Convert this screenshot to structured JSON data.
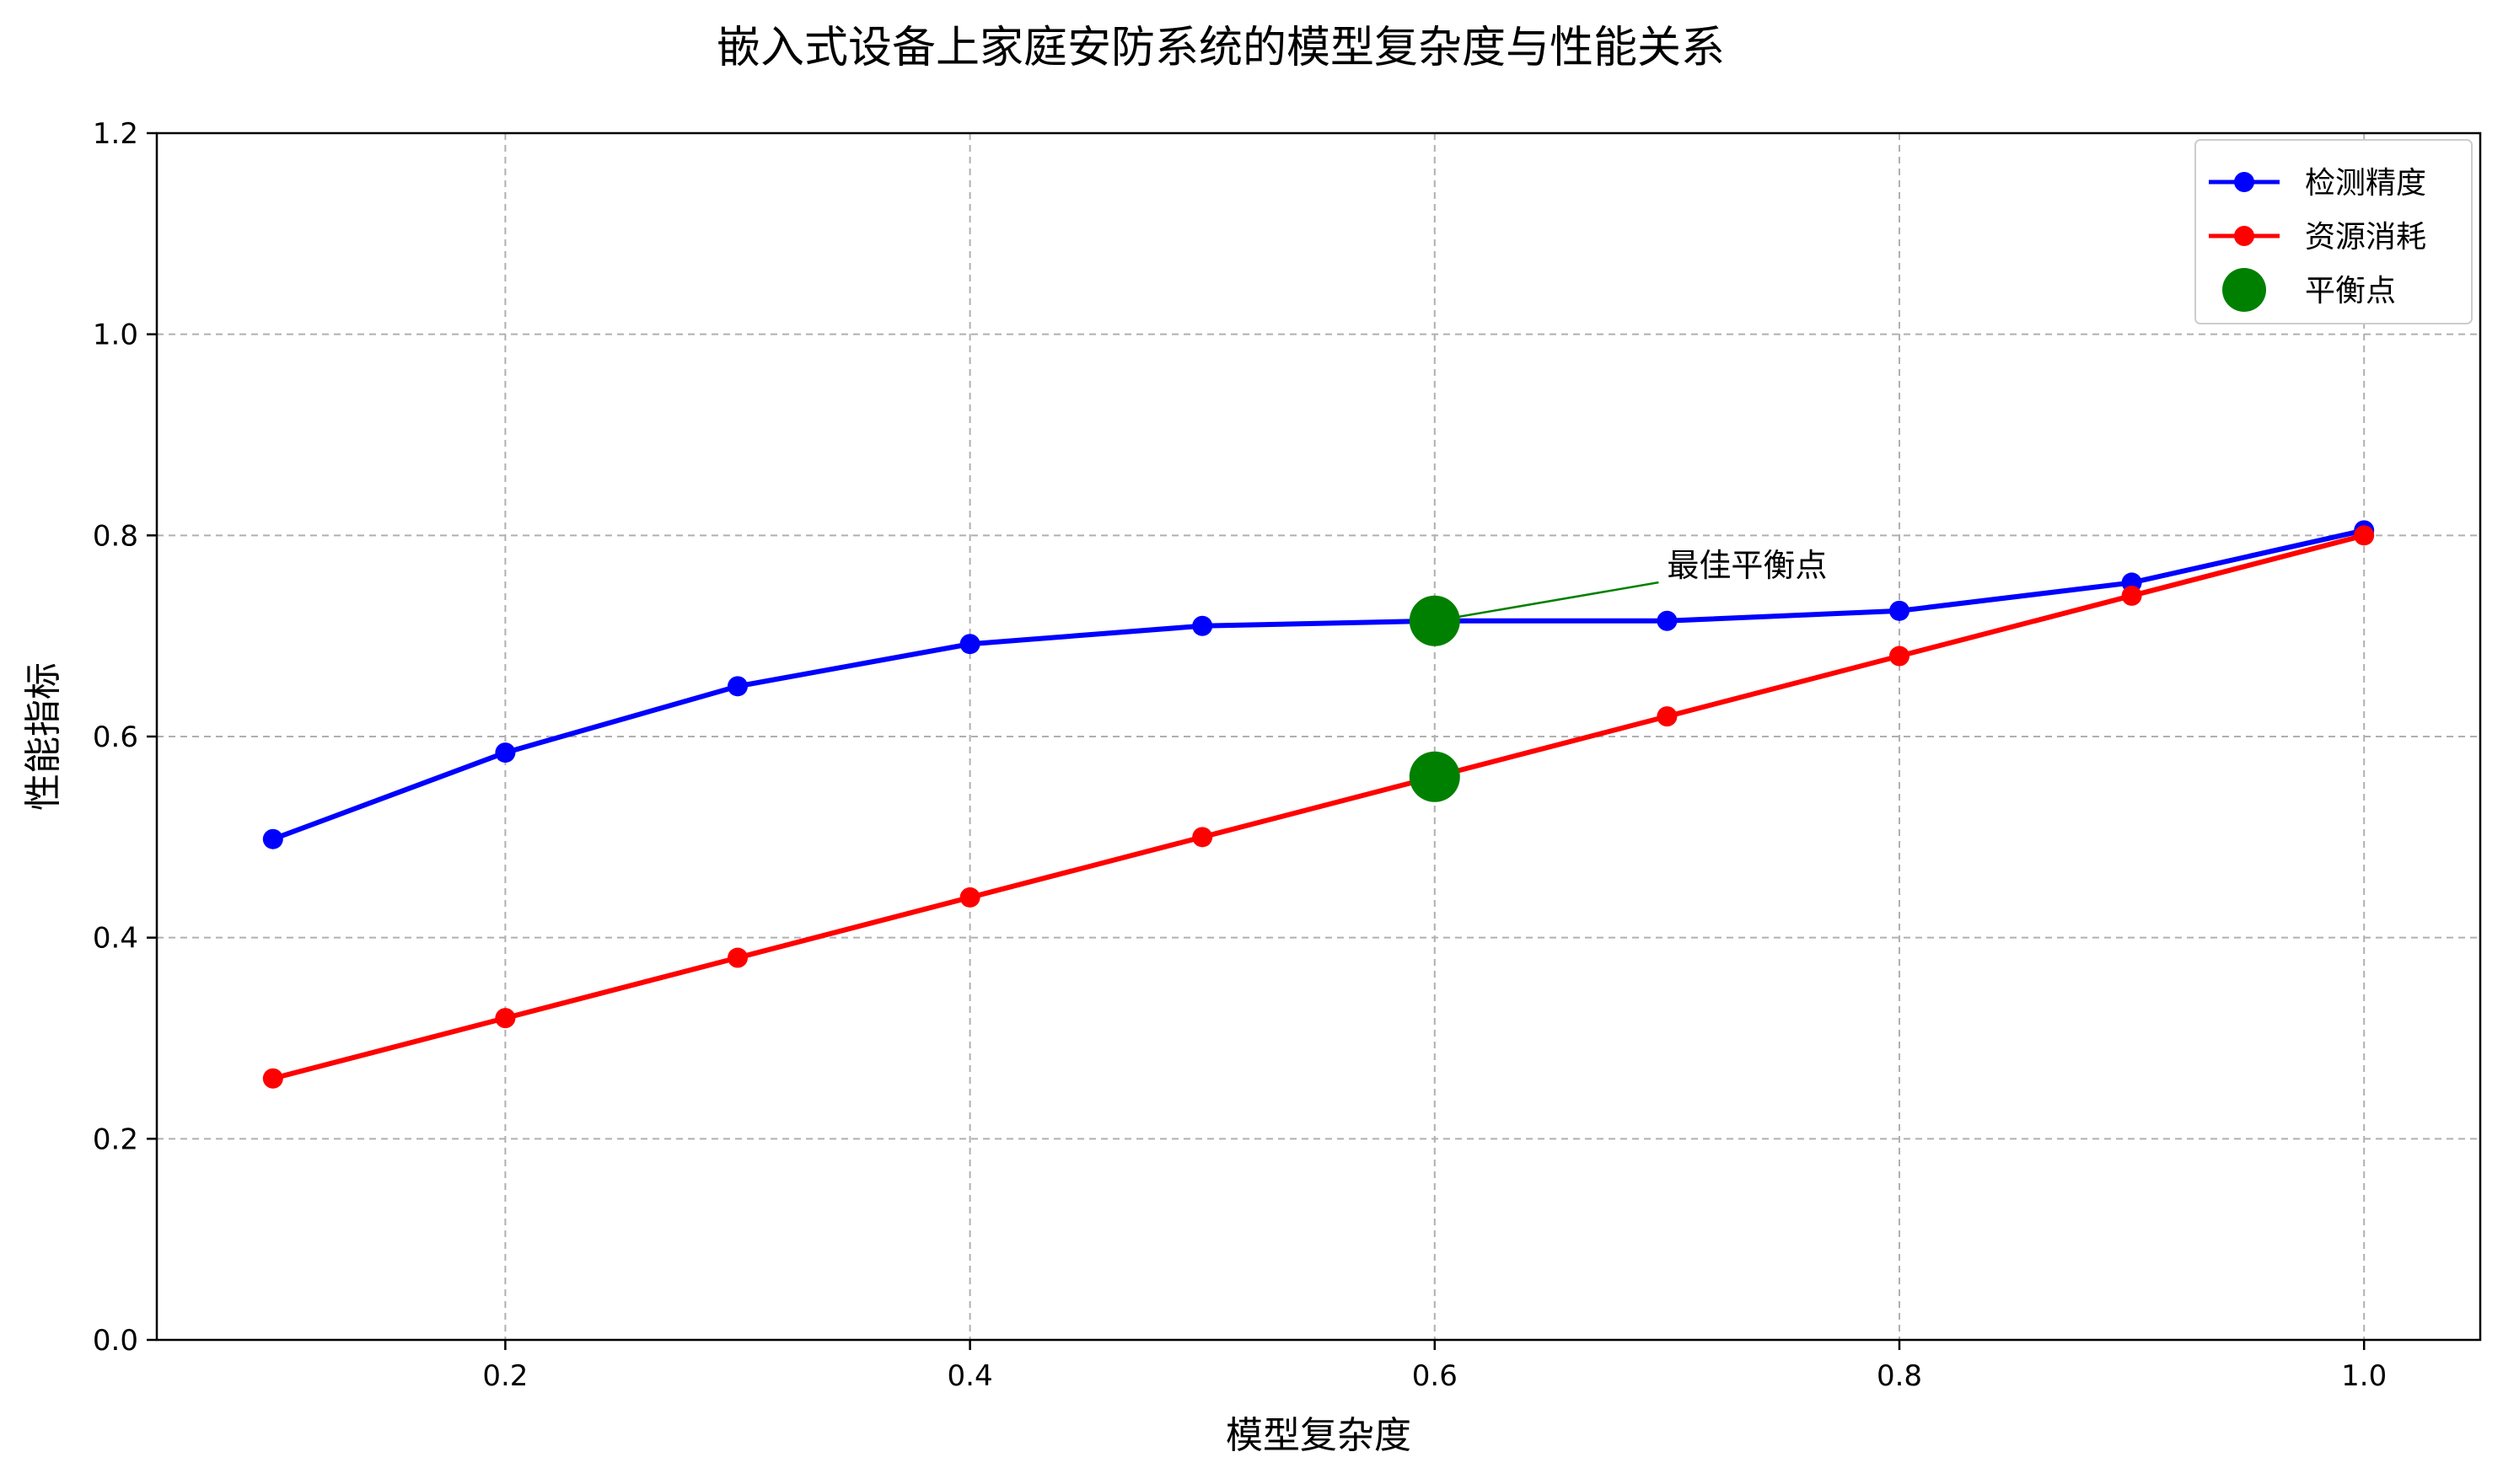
{
  "chart_data": {
    "type": "line",
    "title": "嵌入式设备上家庭安防系统的模型复杂度与性能关系",
    "xlabel": "模型复杂度",
    "ylabel": "性能指标",
    "xlim": [
      0.05,
      1.05
    ],
    "ylim": [
      0.0,
      1.2
    ],
    "xticks": [
      0.2,
      0.4,
      0.6,
      0.8,
      1.0
    ],
    "xtick_labels": [
      "0.2",
      "0.4",
      "0.6",
      "0.8",
      "1.0"
    ],
    "yticks": [
      0.0,
      0.2,
      0.4,
      0.6,
      0.8,
      1.0,
      1.2
    ],
    "ytick_labels": [
      "0.0",
      "0.2",
      "0.4",
      "0.6",
      "0.8",
      "1.0",
      "1.2"
    ],
    "grid": true,
    "legend_position": "top-right",
    "x": [
      0.1,
      0.2,
      0.3,
      0.4,
      0.5,
      0.6,
      0.7,
      0.8,
      0.9,
      1.0
    ],
    "series": [
      {
        "name": "检测精度",
        "color": "#0000ff",
        "values": [
          0.498,
          0.584,
          0.65,
          0.692,
          0.71,
          0.715,
          0.715,
          0.725,
          0.753,
          0.805
        ]
      },
      {
        "name": "资源消耗",
        "color": "#ff0000",
        "values": [
          0.26,
          0.32,
          0.38,
          0.44,
          0.5,
          0.56,
          0.62,
          0.68,
          0.74,
          0.8
        ]
      }
    ],
    "highlight": {
      "name": "平衡点",
      "color": "#008000",
      "points": [
        {
          "x": 0.6,
          "y": 0.715
        },
        {
          "x": 0.6,
          "y": 0.56
        }
      ]
    },
    "annotation": {
      "text": "最佳平衡点",
      "color": "#008000",
      "point": {
        "x": 0.6,
        "y": 0.715
      },
      "text_at": {
        "x": 0.7,
        "y": 0.77
      }
    }
  }
}
